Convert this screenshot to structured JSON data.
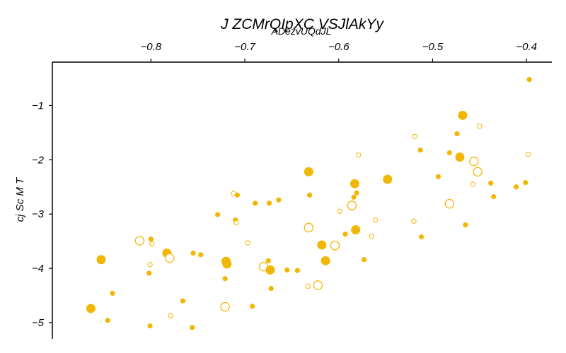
{
  "chart_data": {
    "type": "scatter",
    "title": "J ZCMrQIpXC VSJlAkYy",
    "subtitle": "ADezvUQdJL",
    "xlabel": "",
    "ylabel": "cj Sc M T",
    "xlim": [
      -0.905,
      -0.373
    ],
    "ylim": [
      -5.3,
      -0.2
    ],
    "x_axis_position": "top",
    "x_ticks": [
      -0.8,
      -0.7,
      -0.6,
      -0.5,
      -0.4
    ],
    "x_tick_labels": [
      "−0.8",
      "−0.7",
      "−0.6",
      "−0.5",
      "−0.4"
    ],
    "y_ticks": [
      -1,
      -2,
      -3,
      -4,
      -5
    ],
    "y_tick_labels": [
      "−1",
      "−2",
      "−3",
      "−4",
      "−5"
    ],
    "grid": false,
    "legend": "none",
    "color": "#f2b705",
    "point_style_note": "filled and hollow markers of varying size",
    "points": [
      {
        "x": -0.397,
        "y": -0.52,
        "size": 1,
        "filled": true
      },
      {
        "x": -0.468,
        "y": -1.18,
        "size": 3,
        "filled": true
      },
      {
        "x": -0.45,
        "y": -1.38,
        "size": 1,
        "filled": false
      },
      {
        "x": -0.474,
        "y": -1.52,
        "size": 1,
        "filled": true
      },
      {
        "x": -0.519,
        "y": -1.57,
        "size": 1,
        "filled": false
      },
      {
        "x": -0.513,
        "y": -1.82,
        "size": 1,
        "filled": true
      },
      {
        "x": -0.482,
        "y": -1.87,
        "size": 1,
        "filled": true
      },
      {
        "x": -0.471,
        "y": -1.95,
        "size": 3,
        "filled": true
      },
      {
        "x": -0.398,
        "y": -1.9,
        "size": 1,
        "filled": false
      },
      {
        "x": -0.456,
        "y": -2.03,
        "size": 3,
        "filled": false
      },
      {
        "x": -0.452,
        "y": -2.22,
        "size": 3,
        "filled": false
      },
      {
        "x": -0.494,
        "y": -2.31,
        "size": 1,
        "filled": true
      },
      {
        "x": -0.457,
        "y": -2.45,
        "size": 1,
        "filled": false
      },
      {
        "x": -0.438,
        "y": -2.43,
        "size": 1,
        "filled": true
      },
      {
        "x": -0.401,
        "y": -2.42,
        "size": 1,
        "filled": true
      },
      {
        "x": -0.411,
        "y": -2.5,
        "size": 1,
        "filled": true
      },
      {
        "x": -0.435,
        "y": -2.68,
        "size": 1,
        "filled": true
      },
      {
        "x": -0.482,
        "y": -2.81,
        "size": 3,
        "filled": false
      },
      {
        "x": -0.465,
        "y": -3.2,
        "size": 1,
        "filled": true
      },
      {
        "x": -0.52,
        "y": -3.13,
        "size": 1,
        "filled": false
      },
      {
        "x": -0.512,
        "y": -3.42,
        "size": 1,
        "filled": true
      },
      {
        "x": -0.548,
        "y": -2.36,
        "size": 3,
        "filled": true
      },
      {
        "x": -0.579,
        "y": -1.91,
        "size": 1,
        "filled": false
      },
      {
        "x": -0.583,
        "y": -2.44,
        "size": 3,
        "filled": true
      },
      {
        "x": -0.581,
        "y": -2.61,
        "size": 1,
        "filled": true
      },
      {
        "x": -0.584,
        "y": -2.69,
        "size": 1,
        "filled": true
      },
      {
        "x": -0.586,
        "y": -2.84,
        "size": 3,
        "filled": false
      },
      {
        "x": -0.561,
        "y": -3.11,
        "size": 1,
        "filled": false
      },
      {
        "x": -0.582,
        "y": -3.29,
        "size": 3,
        "filled": true
      },
      {
        "x": -0.593,
        "y": -3.37,
        "size": 1,
        "filled": true
      },
      {
        "x": -0.565,
        "y": -3.41,
        "size": 1,
        "filled": false
      },
      {
        "x": -0.573,
        "y": -3.84,
        "size": 1,
        "filled": true
      },
      {
        "x": -0.599,
        "y": -2.95,
        "size": 1,
        "filled": false
      },
      {
        "x": -0.604,
        "y": -3.58,
        "size": 3,
        "filled": false
      },
      {
        "x": -0.632,
        "y": -2.22,
        "size": 3,
        "filled": true
      },
      {
        "x": -0.631,
        "y": -2.65,
        "size": 1,
        "filled": true
      },
      {
        "x": -0.632,
        "y": -3.25,
        "size": 3,
        "filled": false
      },
      {
        "x": -0.618,
        "y": -3.57,
        "size": 3,
        "filled": true
      },
      {
        "x": -0.614,
        "y": -3.86,
        "size": 3,
        "filled": true
      },
      {
        "x": -0.622,
        "y": -4.31,
        "size": 3,
        "filled": false
      },
      {
        "x": -0.633,
        "y": -4.33,
        "size": 1,
        "filled": false
      },
      {
        "x": -0.664,
        "y": -2.74,
        "size": 1,
        "filled": true
      },
      {
        "x": -0.674,
        "y": -2.8,
        "size": 1,
        "filled": true
      },
      {
        "x": -0.689,
        "y": -2.8,
        "size": 1,
        "filled": true
      },
      {
        "x": -0.697,
        "y": -3.53,
        "size": 1,
        "filled": false
      },
      {
        "x": -0.675,
        "y": -3.86,
        "size": 1,
        "filled": true
      },
      {
        "x": -0.68,
        "y": -3.97,
        "size": 3,
        "filled": false
      },
      {
        "x": -0.673,
        "y": -4.03,
        "size": 3,
        "filled": true
      },
      {
        "x": -0.655,
        "y": -4.03,
        "size": 1,
        "filled": true
      },
      {
        "x": -0.644,
        "y": -4.04,
        "size": 1,
        "filled": true
      },
      {
        "x": -0.672,
        "y": -4.37,
        "size": 1,
        "filled": true
      },
      {
        "x": -0.692,
        "y": -4.7,
        "size": 1,
        "filled": true
      },
      {
        "x": -0.712,
        "y": -2.62,
        "size": 1,
        "filled": false
      },
      {
        "x": -0.708,
        "y": -2.65,
        "size": 1,
        "filled": true
      },
      {
        "x": -0.71,
        "y": -3.11,
        "size": 1,
        "filled": true
      },
      {
        "x": -0.709,
        "y": -3.16,
        "size": 1,
        "filled": false
      },
      {
        "x": -0.729,
        "y": -3.01,
        "size": 1,
        "filled": true
      },
      {
        "x": -0.72,
        "y": -3.87,
        "size": 3,
        "filled": true
      },
      {
        "x": -0.719,
        "y": -3.92,
        "size": 3,
        "filled": true
      },
      {
        "x": -0.721,
        "y": -4.19,
        "size": 1,
        "filled": true
      },
      {
        "x": -0.721,
        "y": -4.71,
        "size": 3,
        "filled": false
      },
      {
        "x": -0.747,
        "y": -3.75,
        "size": 1,
        "filled": true
      },
      {
        "x": -0.755,
        "y": -3.72,
        "size": 1,
        "filled": true
      },
      {
        "x": -0.766,
        "y": -4.6,
        "size": 1,
        "filled": true
      },
      {
        "x": -0.756,
        "y": -5.09,
        "size": 1,
        "filled": true
      },
      {
        "x": -0.783,
        "y": -3.72,
        "size": 3,
        "filled": true
      },
      {
        "x": -0.78,
        "y": -3.81,
        "size": 3,
        "filled": false
      },
      {
        "x": -0.779,
        "y": -4.87,
        "size": 1,
        "filled": false
      },
      {
        "x": -0.812,
        "y": -3.49,
        "size": 3,
        "filled": false
      },
      {
        "x": -0.8,
        "y": -3.46,
        "size": 1,
        "filled": true
      },
      {
        "x": -0.799,
        "y": -3.55,
        "size": 1,
        "filled": false
      },
      {
        "x": -0.801,
        "y": -3.93,
        "size": 1,
        "filled": false
      },
      {
        "x": -0.802,
        "y": -4.09,
        "size": 1,
        "filled": true
      },
      {
        "x": -0.801,
        "y": -5.06,
        "size": 1,
        "filled": true
      },
      {
        "x": -0.853,
        "y": -3.84,
        "size": 3,
        "filled": true
      },
      {
        "x": -0.841,
        "y": -4.46,
        "size": 1,
        "filled": true
      },
      {
        "x": -0.846,
        "y": -4.96,
        "size": 1,
        "filled": true
      },
      {
        "x": -0.864,
        "y": -4.74,
        "size": 3,
        "filled": true
      }
    ]
  }
}
